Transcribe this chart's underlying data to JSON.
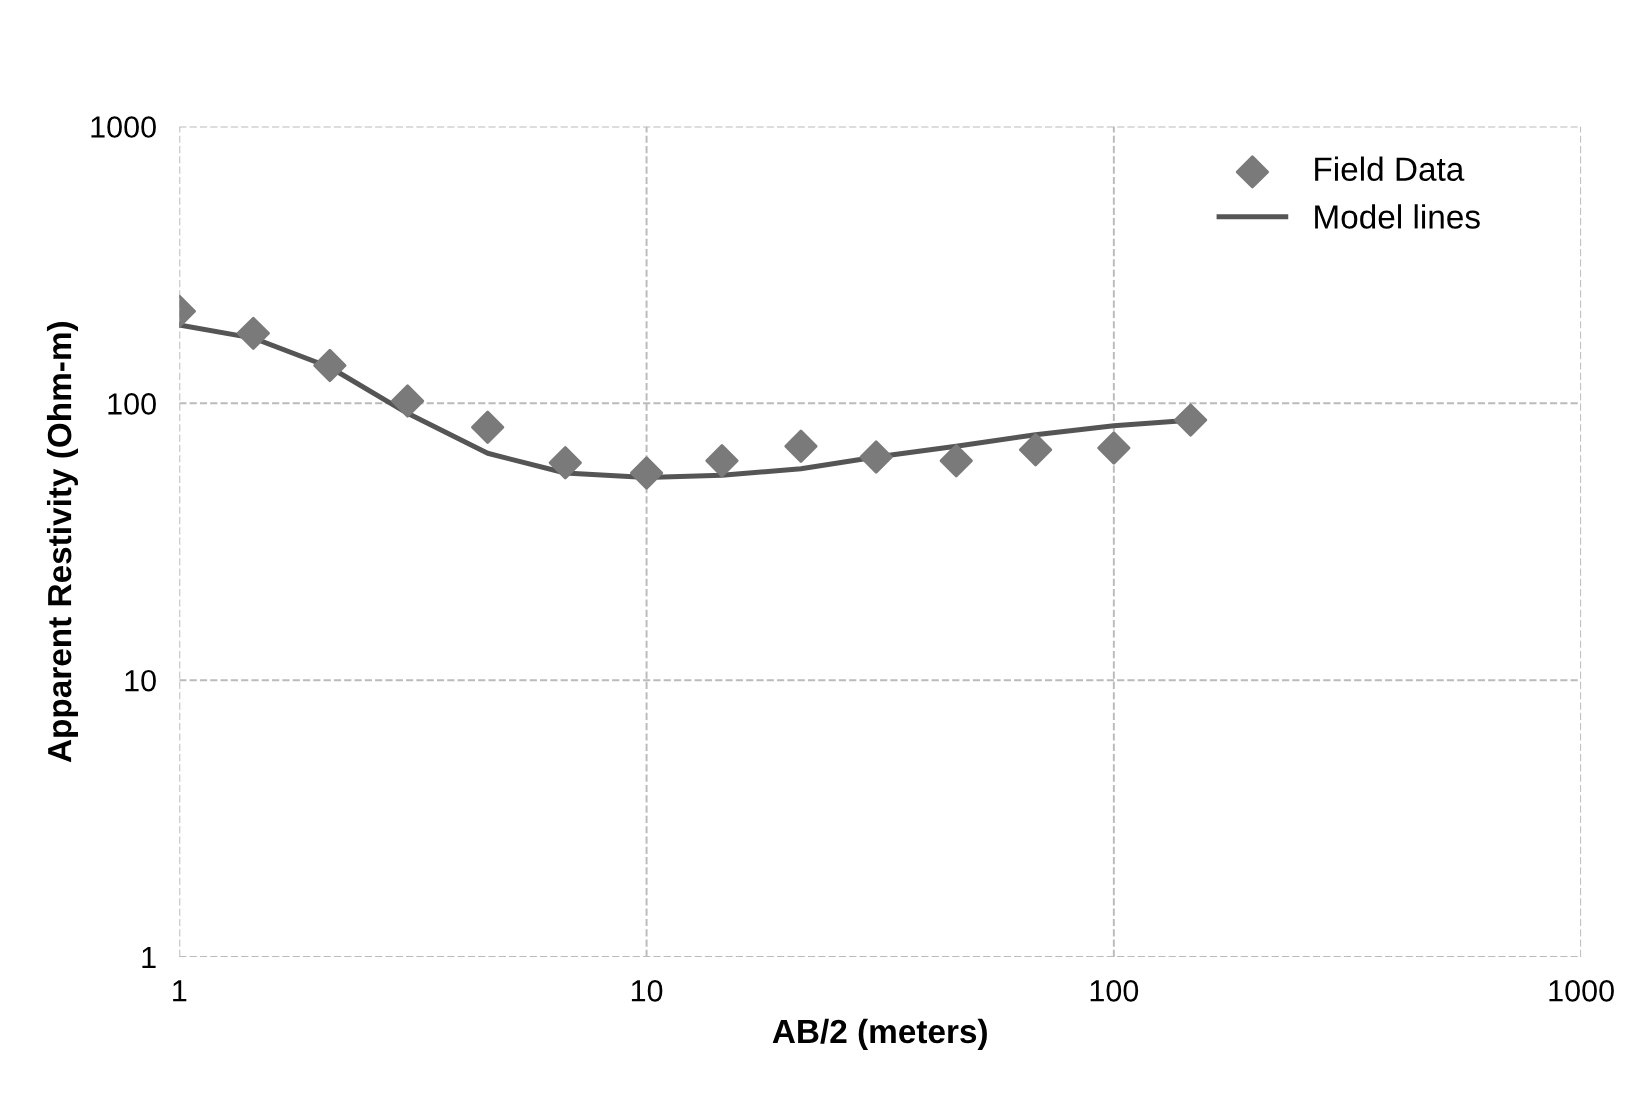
{
  "chart_data": {
    "type": "scatter",
    "xlabel": "AB/2 (meters)",
    "ylabel": "Apparent Restivity (Ohm-m)",
    "log": "xy",
    "xlim": [
      1,
      1000
    ],
    "ylim": [
      1,
      1000
    ],
    "xticks": [
      1,
      10,
      100,
      1000
    ],
    "yticks": [
      1,
      10,
      100,
      1000
    ],
    "grid": true,
    "legend": "top right",
    "series": [
      {
        "name": "Field Data",
        "marker": "diamond",
        "color": "#7a7a7a",
        "x": [
          1,
          1.44,
          2.1,
          3.08,
          4.57,
          6.7,
          10,
          14.5,
          21.4,
          31,
          46,
          68,
          100,
          146
        ],
        "values": [
          215,
          179,
          137,
          102,
          82,
          61,
          56,
          62,
          70,
          64,
          62,
          68,
          69,
          87
        ]
      },
      {
        "name": "Model lines",
        "type": "line",
        "marker": "none",
        "line_style": "solid",
        "color": "#555555",
        "x": [
          1,
          1.44,
          2.1,
          3.08,
          4.57,
          6.7,
          10,
          14.5,
          21.4,
          31,
          46,
          68,
          100,
          146
        ],
        "values": [
          192,
          172,
          135,
          92,
          66,
          56,
          54,
          55,
          58,
          64,
          70,
          77,
          83,
          87
        ]
      }
    ]
  }
}
